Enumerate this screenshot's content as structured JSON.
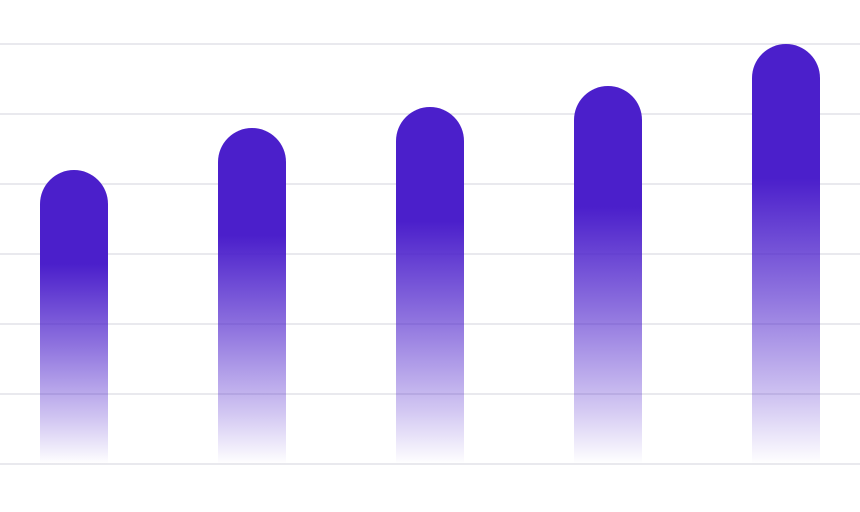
{
  "chart_data": {
    "type": "bar",
    "categories": [
      "",
      "",
      "",
      "",
      ""
    ],
    "values": [
      42,
      48,
      51,
      54,
      60
    ],
    "ylim": [
      0,
      60
    ],
    "grid": true,
    "bar_style": "rounded-top-gradient-fade",
    "colors": {
      "bar": "#4b1fcb",
      "grid": "#e2e2e8",
      "background": "#ffffff"
    }
  }
}
